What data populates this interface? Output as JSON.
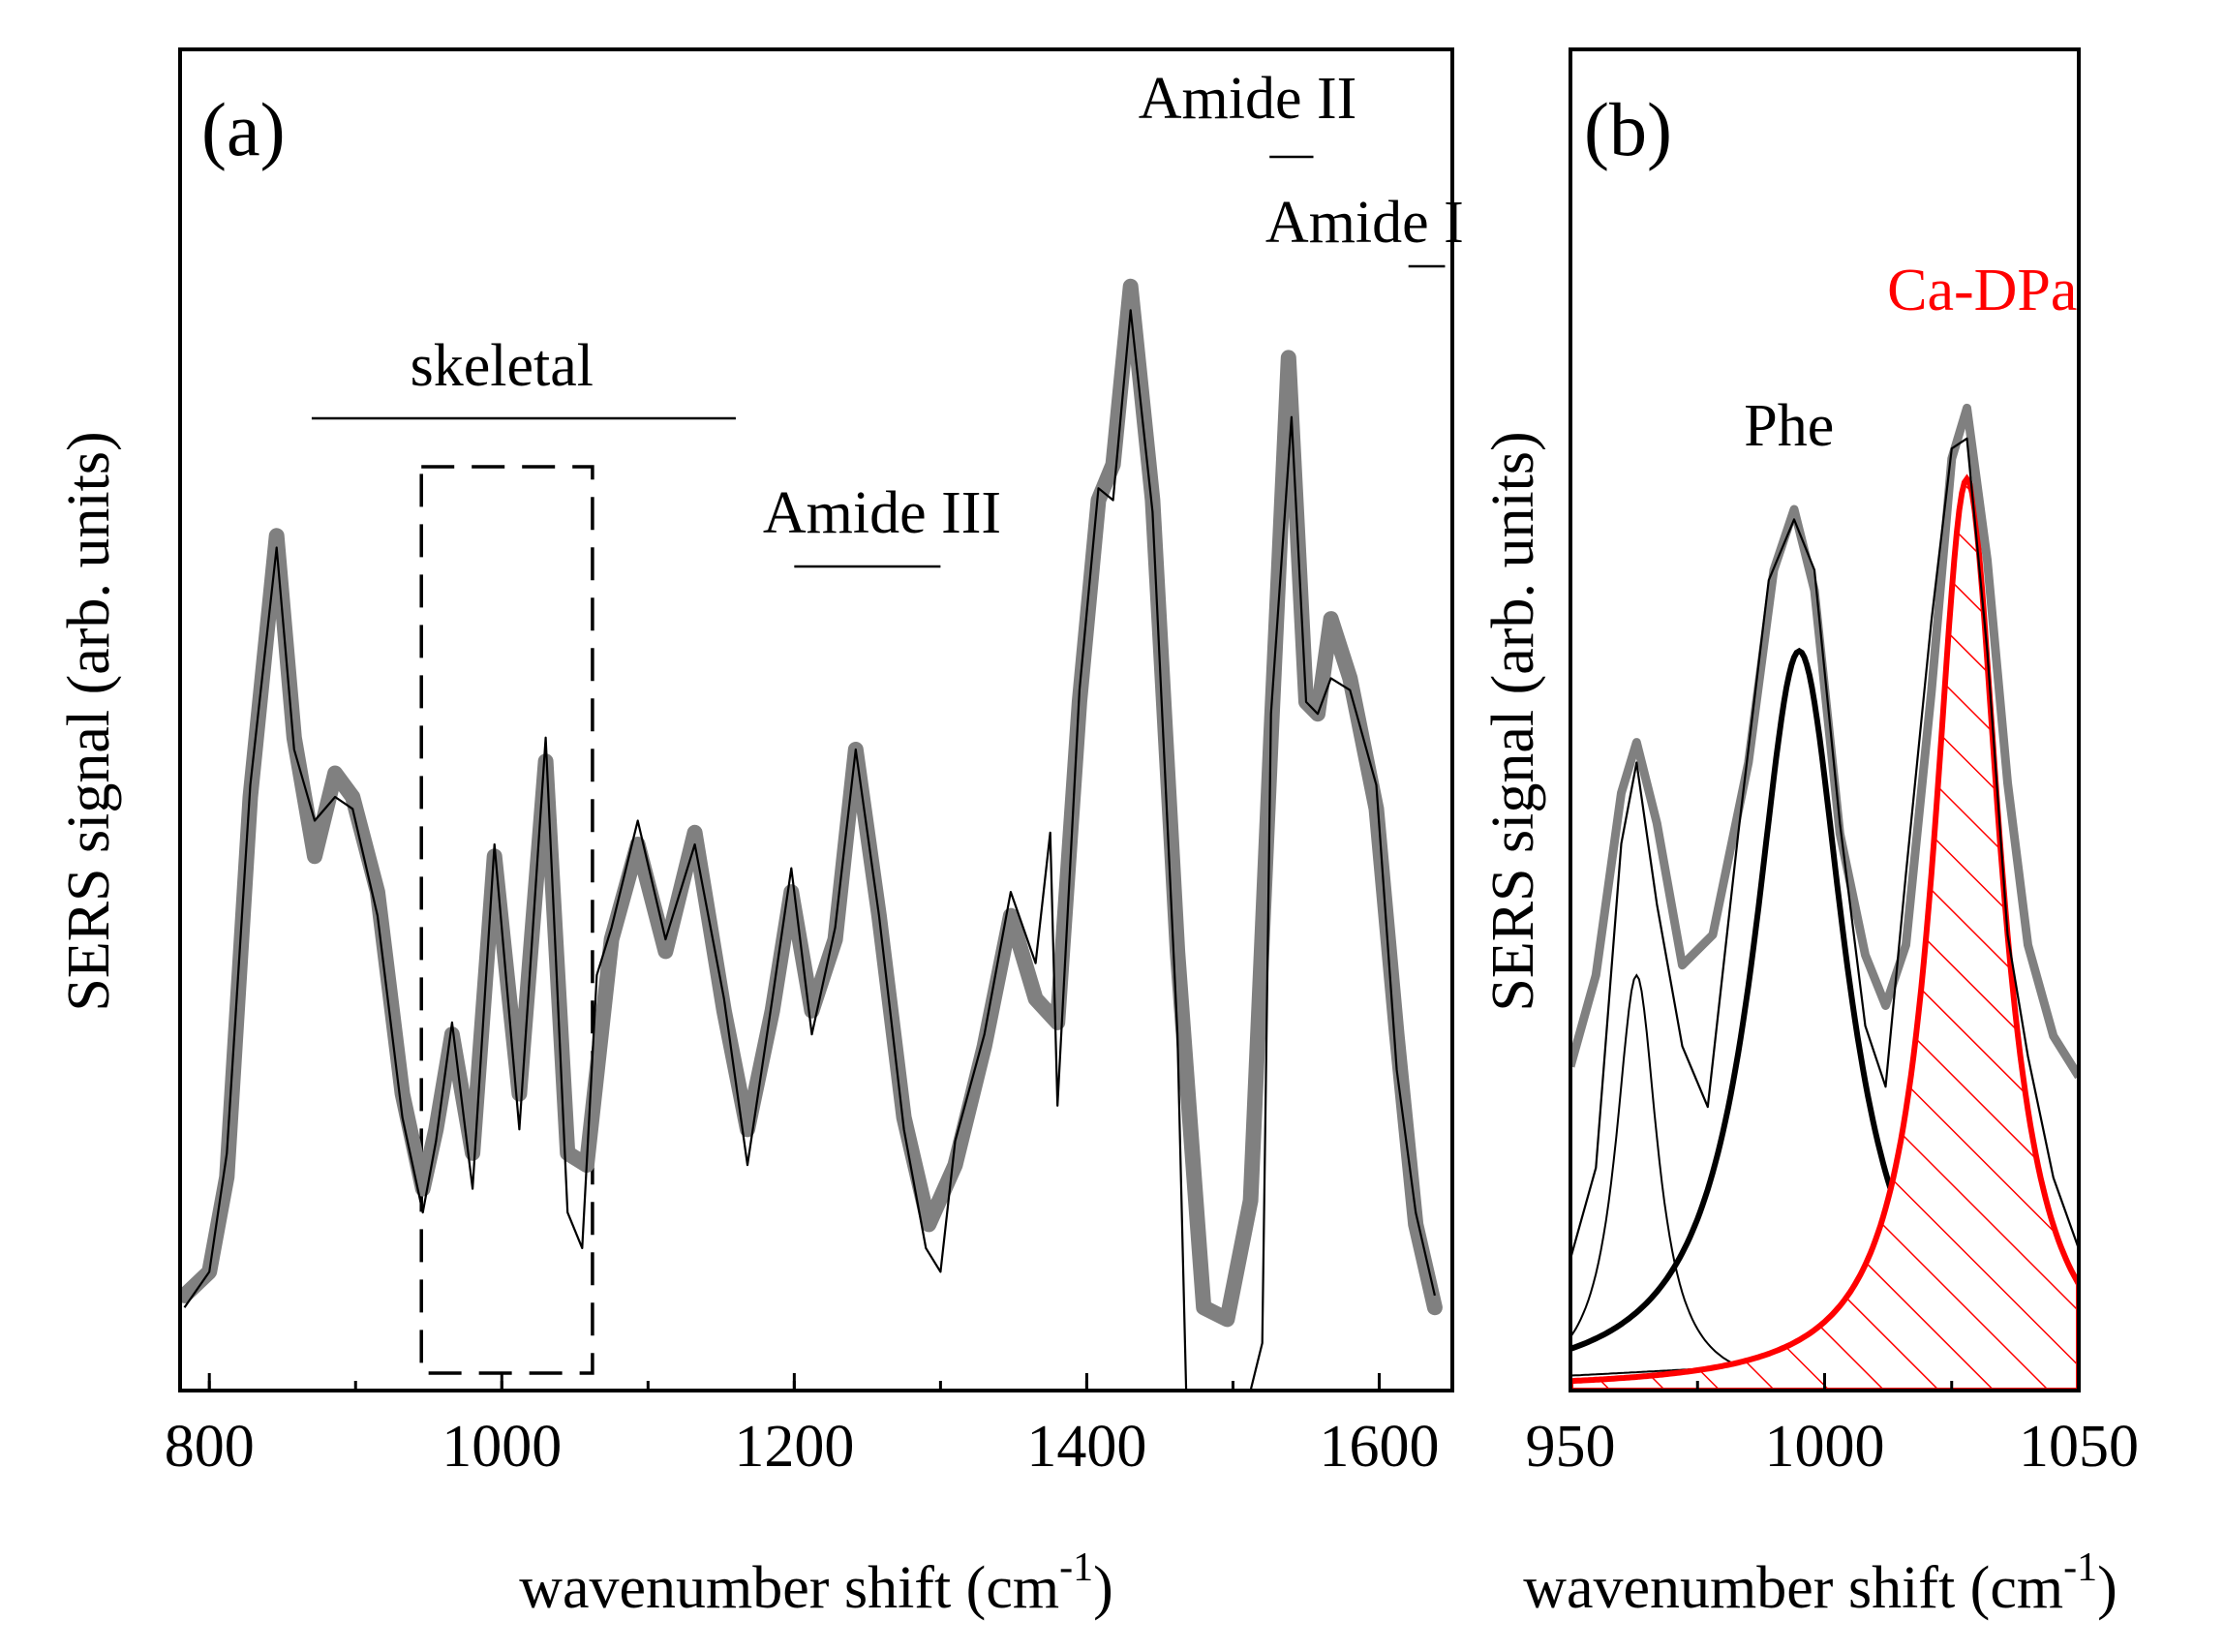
{
  "chart_data": [
    {
      "panel": "(a)",
      "type": "line",
      "xlabel": "wavenumber shift (cm",
      "xlabel_sup": "-1",
      "xlabel_close": ")",
      "ylabel": "SERS signal (arb. units)",
      "xlim": [
        780,
        1650
      ],
      "ylim": [
        0,
        1
      ],
      "xticks": [
        800,
        1000,
        1200,
        1400,
        1600
      ],
      "grid": false,
      "annotations": [
        {
          "text": "skeletal",
          "x": 1000,
          "x_range": [
            870,
            1160
          ]
        },
        {
          "text": "Amide III",
          "x": 1260,
          "x_range": [
            1200,
            1300
          ]
        },
        {
          "text": "Amide II",
          "x": 1510,
          "x_range": [
            1525,
            1555
          ]
        },
        {
          "text": "Amide I",
          "x": 1590,
          "x_range": [
            1620,
            1645
          ]
        }
      ],
      "highlight_box": {
        "x_range": [
          945,
          1062
        ]
      },
      "series": [
        {
          "style": "thick-gray",
          "x": [
            783,
            800,
            812,
            828,
            846,
            858,
            872,
            886,
            898,
            915,
            932,
            946,
            955,
            966,
            980,
            995,
            1012,
            1030,
            1045,
            1058,
            1075,
            1093,
            1112,
            1132,
            1152,
            1168,
            1185,
            1198,
            1212,
            1228,
            1242,
            1258,
            1275,
            1292,
            1310,
            1330,
            1348,
            1365,
            1380,
            1395,
            1408,
            1418,
            1430,
            1445,
            1462,
            1480,
            1496,
            1512,
            1526,
            1538,
            1550,
            1558,
            1567,
            1580,
            1598,
            1612,
            1625,
            1638
          ],
          "y": [
            0.08,
            0.1,
            0.18,
            0.5,
            0.72,
            0.55,
            0.45,
            0.52,
            0.5,
            0.42,
            0.25,
            0.17,
            0.22,
            0.3,
            0.2,
            0.45,
            0.25,
            0.53,
            0.2,
            0.19,
            0.38,
            0.46,
            0.37,
            0.47,
            0.32,
            0.22,
            0.32,
            0.42,
            0.32,
            0.38,
            0.54,
            0.4,
            0.23,
            0.14,
            0.19,
            0.29,
            0.4,
            0.33,
            0.31,
            0.58,
            0.75,
            0.78,
            0.93,
            0.75,
            0.37,
            0.07,
            0.06,
            0.16,
            0.55,
            0.87,
            0.58,
            0.57,
            0.65,
            0.6,
            0.49,
            0.3,
            0.14,
            0.07
          ]
        },
        {
          "style": "thin-black",
          "x": [
            783,
            800,
            812,
            828,
            846,
            858,
            872,
            886,
            898,
            915,
            932,
            946,
            955,
            966,
            980,
            995,
            1012,
            1030,
            1045,
            1055,
            1065,
            1075,
            1093,
            1112,
            1132,
            1152,
            1168,
            1185,
            1198,
            1212,
            1228,
            1242,
            1258,
            1275,
            1290,
            1300,
            1310,
            1330,
            1348,
            1365,
            1375,
            1380,
            1395,
            1408,
            1418,
            1430,
            1445,
            1462,
            1468,
            1485,
            1496,
            1500,
            1512,
            1520,
            1526,
            1540,
            1550,
            1558,
            1567,
            1580,
            1598,
            1612,
            1625,
            1638
          ],
          "y": [
            0.07,
            0.1,
            0.2,
            0.51,
            0.71,
            0.54,
            0.48,
            0.5,
            0.49,
            0.4,
            0.23,
            0.15,
            0.21,
            0.31,
            0.17,
            0.46,
            0.22,
            0.55,
            0.15,
            0.12,
            0.35,
            0.39,
            0.48,
            0.38,
            0.46,
            0.33,
            0.19,
            0.33,
            0.44,
            0.3,
            0.39,
            0.54,
            0.4,
            0.22,
            0.12,
            0.1,
            0.21,
            0.3,
            0.42,
            0.36,
            0.47,
            0.24,
            0.59,
            0.76,
            0.75,
            0.91,
            0.74,
            0.3,
            0.0,
            0.0,
            0.0,
            0.0,
            0.0,
            0.04,
            0.57,
            0.82,
            0.58,
            0.57,
            0.6,
            0.59,
            0.51,
            0.27,
            0.15,
            0.08
          ]
        }
      ]
    },
    {
      "panel": "(b)",
      "type": "line",
      "xlabel": "wavenumber shift (cm",
      "xlabel_sup": "-1",
      "xlabel_close": ")",
      "ylabel": "SERS signal (arb. units)",
      "xlim": [
        950,
        1050
      ],
      "ylim": [
        0,
        1
      ],
      "xticks": [
        950,
        1000,
        1050
      ],
      "grid": false,
      "annotations": [
        {
          "text": "Phe",
          "x": 993
        },
        {
          "text": "Ca-DPa",
          "x": 1031,
          "color": "#ff0000"
        }
      ],
      "components": [
        {
          "style": "thin-black",
          "center": 963,
          "width": 5,
          "amplitude": 0.41
        },
        {
          "style": "thick-black",
          "center": 995,
          "width": 11,
          "amplitude": 0.73
        },
        {
          "style": "red-hatched",
          "center": 1028,
          "width": 8,
          "amplitude": 0.9,
          "name": "Ca-DPa"
        },
        {
          "style": "thin-black",
          "center": 1000,
          "width": 60,
          "amplitude": 0.025
        }
      ],
      "series": [
        {
          "style": "thick-gray",
          "x": [
            950,
            955,
            960,
            963,
            967,
            972,
            978,
            985,
            990,
            994,
            998,
            1003,
            1008,
            1012,
            1016,
            1021,
            1025,
            1028,
            1032,
            1036,
            1040,
            1045,
            1050
          ],
          "y": [
            0.32,
            0.41,
            0.59,
            0.64,
            0.56,
            0.42,
            0.45,
            0.62,
            0.81,
            0.87,
            0.79,
            0.55,
            0.43,
            0.38,
            0.44,
            0.69,
            0.92,
            0.97,
            0.82,
            0.6,
            0.44,
            0.35,
            0.31
          ]
        },
        {
          "style": "thin-black",
          "x": [
            950,
            955,
            960,
            963,
            967,
            972,
            977,
            983,
            989,
            994,
            998,
            1003,
            1008,
            1012,
            1016,
            1021,
            1025,
            1028,
            1032,
            1036,
            1040,
            1045,
            1050
          ],
          "y": [
            0.13,
            0.22,
            0.54,
            0.62,
            0.48,
            0.34,
            0.28,
            0.55,
            0.8,
            0.86,
            0.81,
            0.56,
            0.36,
            0.3,
            0.51,
            0.76,
            0.93,
            0.94,
            0.73,
            0.45,
            0.33,
            0.21,
            0.14
          ]
        }
      ]
    }
  ]
}
